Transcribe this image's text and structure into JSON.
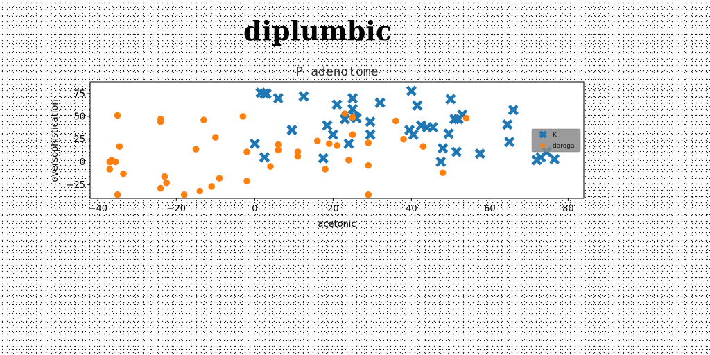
{
  "figure_title": "diplumbic",
  "chart_data": {
    "type": "scatter",
    "title": "P adenotome",
    "xlabel": "acetonic",
    "ylabel": "oversophistication",
    "xlim": [
      -42,
      84
    ],
    "ylim": [
      -40,
      88
    ],
    "xticks": [
      -40,
      -20,
      0,
      20,
      40,
      60,
      80
    ],
    "yticks": [
      -25,
      0,
      25,
      50,
      75
    ],
    "legend_position": "center-right",
    "series": [
      {
        "name": "K",
        "marker": "x",
        "color": "#1f77b4",
        "points": [
          [
            1.5,
            76
          ],
          [
            2.5,
            75
          ],
          [
            3,
            75
          ],
          [
            6,
            70
          ],
          [
            12.5,
            72
          ],
          [
            0,
            20
          ],
          [
            2.5,
            5
          ],
          [
            9.5,
            35
          ],
          [
            17.5,
            4
          ],
          [
            18.5,
            40
          ],
          [
            20,
            30
          ],
          [
            21,
            63
          ],
          [
            23,
            47
          ],
          [
            24,
            20
          ],
          [
            25,
            70
          ],
          [
            25,
            58
          ],
          [
            25.5,
            50
          ],
          [
            26,
            48
          ],
          [
            29.5,
            44
          ],
          [
            29.5,
            30
          ],
          [
            32,
            65
          ],
          [
            39.5,
            35
          ],
          [
            40,
            78
          ],
          [
            40.5,
            30
          ],
          [
            41.5,
            62
          ],
          [
            42.5,
            40
          ],
          [
            44,
            38
          ],
          [
            45.5,
            38
          ],
          [
            47.5,
            0
          ],
          [
            48,
            15
          ],
          [
            49.5,
            31
          ],
          [
            50,
            69
          ],
          [
            51,
            47
          ],
          [
            51.5,
            11
          ],
          [
            52,
            47
          ],
          [
            53,
            52
          ],
          [
            57.5,
            9
          ],
          [
            64.5,
            41
          ],
          [
            65,
            22
          ],
          [
            66,
            57
          ],
          [
            72,
            2
          ],
          [
            73,
            5
          ],
          [
            74.5,
            11
          ],
          [
            76.5,
            3
          ]
        ]
      },
      {
        "name": "daroga",
        "marker": "o",
        "color": "#ff7f0e",
        "points": [
          [
            -37,
            -8
          ],
          [
            -37,
            0
          ],
          [
            -36.5,
            2
          ],
          [
            -35.5,
            0
          ],
          [
            -35,
            51
          ],
          [
            -35,
            -36
          ],
          [
            -34.5,
            17
          ],
          [
            -33.5,
            -13
          ],
          [
            -24,
            47
          ],
          [
            -24,
            44
          ],
          [
            -24,
            -29
          ],
          [
            -23,
            -16
          ],
          [
            -22.5,
            -23
          ],
          [
            -18,
            -36
          ],
          [
            -15,
            14
          ],
          [
            -14,
            -32
          ],
          [
            -13,
            46
          ],
          [
            -11,
            -27
          ],
          [
            -10,
            27
          ],
          [
            -9,
            -18
          ],
          [
            -3,
            50
          ],
          [
            -2,
            11
          ],
          [
            -2,
            -21
          ],
          [
            4,
            -5
          ],
          [
            6,
            19
          ],
          [
            6,
            13
          ],
          [
            11,
            11
          ],
          [
            11,
            6
          ],
          [
            16,
            23
          ],
          [
            18,
            -8
          ],
          [
            19,
            20
          ],
          [
            21,
            18
          ],
          [
            23,
            53
          ],
          [
            24,
            2
          ],
          [
            25,
            49
          ],
          [
            25,
            30
          ],
          [
            29,
            21
          ],
          [
            29,
            -4
          ],
          [
            29,
            -36
          ],
          [
            36,
            45
          ],
          [
            38,
            25
          ],
          [
            43,
            17
          ],
          [
            48,
            -12
          ],
          [
            54,
            48
          ]
        ]
      }
    ]
  }
}
